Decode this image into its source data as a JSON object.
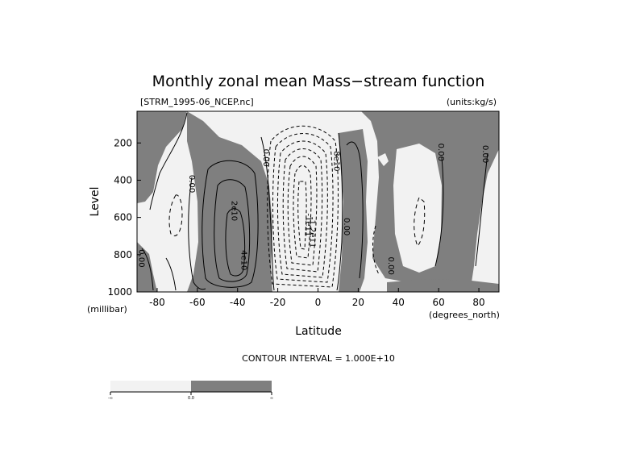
{
  "chart_data": {
    "type": "contour",
    "title": "Monthly zonal mean Mass−stream function",
    "file_label": "[STRM_1995-06_NCEP.nc]",
    "units_label": "(units:kg/s)",
    "xlabel": "Latitude",
    "x_unit": "(degrees_north)",
    "ylabel": "Level",
    "y_unit": "(millibar)",
    "xlim": [
      -90,
      90
    ],
    "ylim": [
      1000,
      30
    ],
    "y_inverted": true,
    "x_ticks": [
      -80,
      -60,
      -40,
      -20,
      0,
      20,
      40,
      60,
      80
    ],
    "y_ticks": [
      200,
      400,
      600,
      800,
      1000
    ],
    "contour_interval_text": "CONTOUR INTERVAL = 1.000E+10",
    "negative_fill": "#f2f2f2",
    "positive_fill": "#7f7f7f",
    "contour_labels": [
      {
        "text": "0.00",
        "lat": -64,
        "lev": 420
      },
      {
        "text": "0.00",
        "lat": -89,
        "lev": 820
      },
      {
        "text": "2e10",
        "lat": -43,
        "lev": 565
      },
      {
        "text": "4e10",
        "lat": -38,
        "lev": 830
      },
      {
        "text": "0.00",
        "lat": -27,
        "lev": 280
      },
      {
        "text": "-1e11",
        "lat": -6,
        "lev": 640
      },
      {
        "text": "-1.2e11",
        "lat": -4,
        "lev": 680
      },
      {
        "text": "-8e10",
        "lat": 8,
        "lev": 290
      },
      {
        "text": "0.00",
        "lat": 13,
        "lev": 650
      },
      {
        "text": "0.00",
        "lat": 35,
        "lev": 860
      },
      {
        "text": "0.00",
        "lat": 60,
        "lev": 250
      },
      {
        "text": "0.00",
        "lat": 82,
        "lev": 260
      }
    ],
    "colorbar": {
      "left_label": "-∞",
      "center_label": "0.0",
      "right_label": "∞"
    }
  }
}
